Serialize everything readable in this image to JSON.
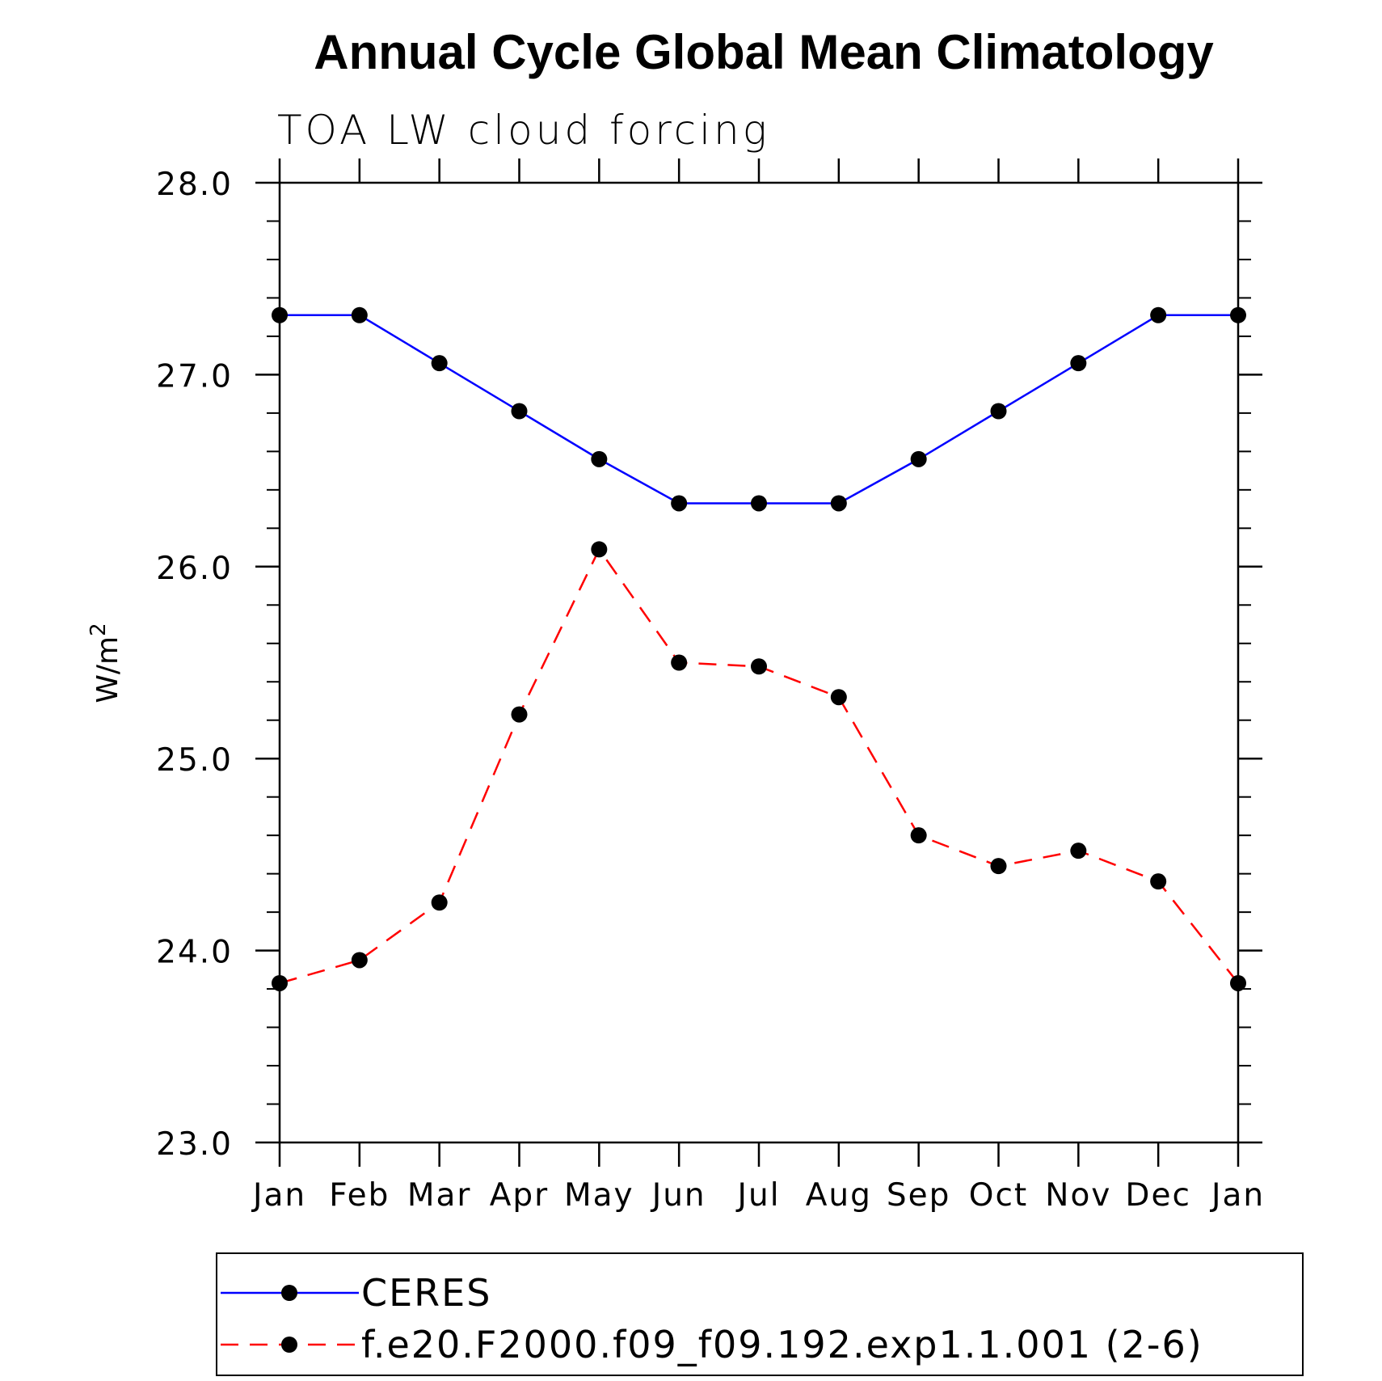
{
  "chart_data": {
    "type": "line",
    "title": "Annual Cycle Global Mean Climatology",
    "subtitle": "TOA LW cloud forcing",
    "ylabel": "W/m",
    "ylabel_sup": "2",
    "ylim": [
      23.0,
      28.0
    ],
    "yticks": [
      "23.0",
      "24.0",
      "25.0",
      "26.0",
      "27.0",
      "28.0"
    ],
    "categories": [
      "Jan",
      "Feb",
      "Mar",
      "Apr",
      "May",
      "Jun",
      "Jul",
      "Aug",
      "Sep",
      "Oct",
      "Nov",
      "Dec",
      "Jan"
    ],
    "grid": false,
    "legend_position": "bottom",
    "series": [
      {
        "name": "CERES",
        "color": "#0000ff",
        "dash": "solid",
        "values": [
          27.31,
          27.31,
          27.06,
          26.81,
          26.56,
          26.33,
          26.33,
          26.33,
          26.56,
          26.81,
          27.06,
          27.31,
          27.31
        ]
      },
      {
        "name": "f.e20.F2000.f09_f09.192.exp1.1.001 (2-6)",
        "color": "#ff0000",
        "dash": "dashed",
        "values": [
          23.83,
          23.95,
          24.25,
          25.23,
          26.09,
          25.5,
          25.48,
          25.32,
          24.6,
          24.44,
          24.52,
          24.36,
          23.83
        ]
      }
    ]
  }
}
